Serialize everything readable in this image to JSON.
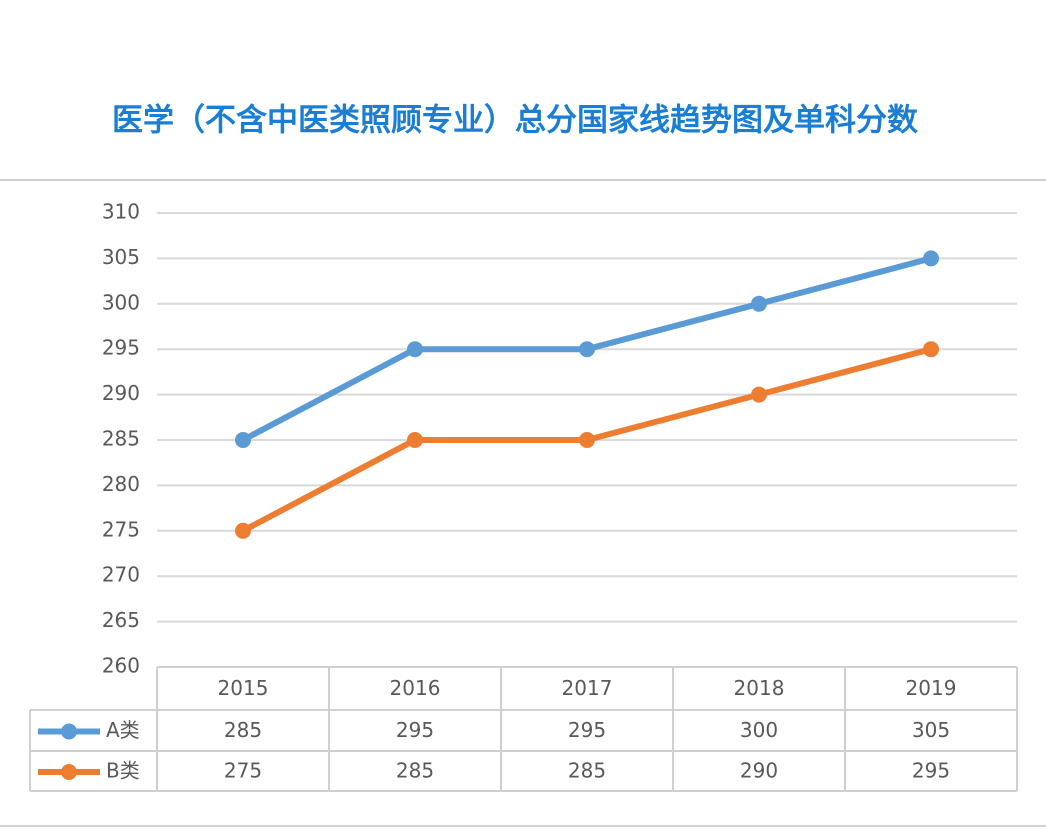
{
  "chart_data": {
    "type": "line",
    "title": "医学（不含中医类照顾专业）总分国家线趋势图及单科分数",
    "categories": [
      "2015",
      "2016",
      "2017",
      "2018",
      "2019"
    ],
    "series": [
      {
        "name": "A类",
        "color": "#5b9bd5",
        "values": [
          285,
          295,
          295,
          300,
          305
        ]
      },
      {
        "name": "B类",
        "color": "#ed7d31",
        "values": [
          275,
          285,
          285,
          290,
          295
        ]
      }
    ],
    "ylim": [
      260,
      310
    ],
    "yticks": [
      260,
      265,
      270,
      275,
      280,
      285,
      290,
      295,
      300,
      305,
      310
    ],
    "grid": true
  }
}
